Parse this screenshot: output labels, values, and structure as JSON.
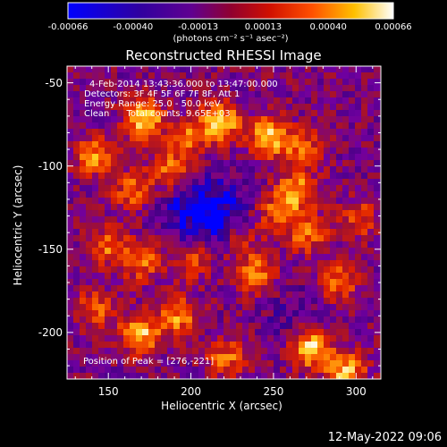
{
  "colorbar": {
    "range": [
      -0.00066,
      0.00066
    ],
    "tick_labels": [
      "-0.00066",
      "-0.00040",
      "-0.00013",
      "0.00013",
      "0.00040",
      "0.00066"
    ],
    "units": "(photons cm⁻² s⁻¹ asec⁻²)"
  },
  "chart_data": {
    "type": "heatmap",
    "title": "Reconstructed RHESSI Image",
    "xlabel": "Heliocentric X (arcsec)",
    "ylabel": "Heliocentric Y (arcsec)",
    "xlim": [
      125,
      315
    ],
    "ylim": [
      -228,
      -40
    ],
    "x_ticks": [
      "150",
      "200",
      "250",
      "300"
    ],
    "x_tick_values": [
      150,
      200,
      250,
      300
    ],
    "y_ticks": [
      "-50",
      "-100",
      "-150",
      "-200"
    ],
    "y_tick_values": [
      -50,
      -100,
      -150,
      -200
    ],
    "peak": [
      276,
      -221
    ],
    "colormap": [
      "#0000ff",
      "#400080",
      "#7000a0",
      "#a01030",
      "#e02000",
      "#ff7000",
      "#ffd020",
      "#ffffff"
    ],
    "annotations": [
      "4-Feb-2014 13:43:36.000 to 13:47:00.000",
      "Detectors: 3F 4F 5F 6F 7F 8F, Att 1",
      "Energy Range: 25.0 - 50.0 keV",
      "Clean      Total counts: 9.65E+03",
      "Position of Peak = [276,-221]"
    ]
  },
  "footer": {
    "date_stamp": "12-May-2022 09:06"
  }
}
